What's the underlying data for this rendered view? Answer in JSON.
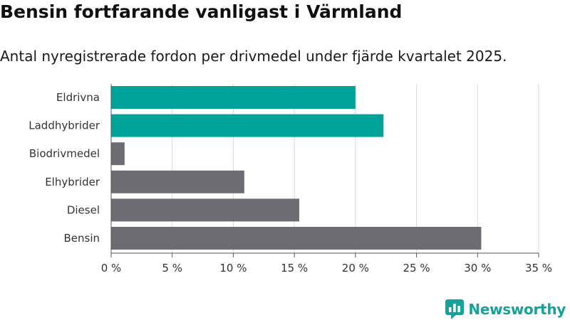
{
  "title": "Bensin fortfarande vanligast i Värmland",
  "subtitle": "Antal nyregistrerade fordon per drivmedel under fjärde kvartalet 2025.",
  "brand": {
    "name": "Newsworthy",
    "logo_icon": "newsworthy-logo-icon"
  },
  "colors": {
    "highlight": "#00a39a",
    "default": "#6d6c72",
    "grid": "#d9d9d9",
    "text": "#333333"
  },
  "chart_data": {
    "type": "bar",
    "orientation": "horizontal",
    "title": "Bensin fortfarande vanligast i Värmland",
    "subtitle": "Antal nyregistrerade fordon per drivmedel under fjärde kvartalet 2025.",
    "xlabel": "",
    "ylabel": "",
    "categories": [
      "Eldrivna",
      "Laddhybrider",
      "Biodrivmedel",
      "Elhybrider",
      "Diesel",
      "Bensin"
    ],
    "values": [
      20.0,
      22.3,
      1.1,
      10.9,
      15.4,
      30.3
    ],
    "highlighted": [
      true,
      true,
      false,
      false,
      false,
      false
    ],
    "xlim": [
      0,
      35
    ],
    "xticks": [
      0,
      5,
      10,
      15,
      20,
      25,
      30,
      35
    ],
    "xtick_labels": [
      "0 %",
      "5 %",
      "10 %",
      "15 %",
      "20 %",
      "25 %",
      "30 %",
      "35 %"
    ],
    "grid": "vertical",
    "legend": "none"
  }
}
